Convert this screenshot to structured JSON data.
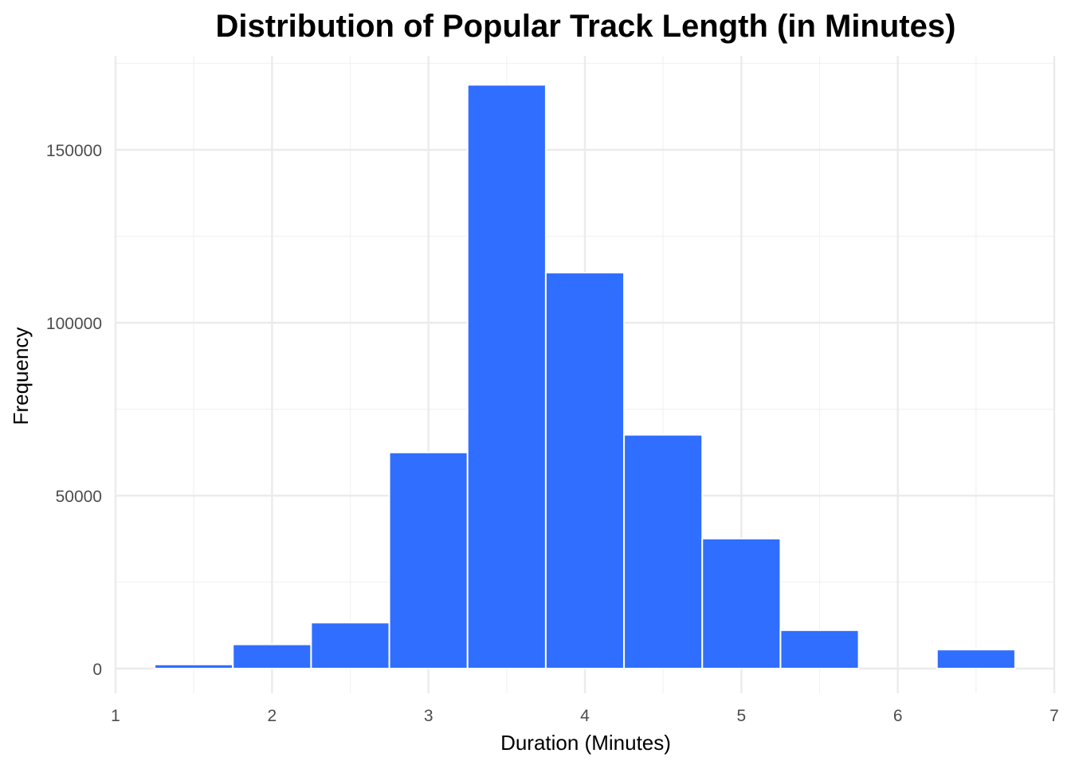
{
  "chart_data": {
    "type": "bar",
    "title": "Distribution of Popular Track Length (in Minutes)",
    "xlabel": "Duration (Minutes)",
    "ylabel": "Frequency",
    "bin_width": 0.5,
    "bins": [
      {
        "start": 1.25,
        "end": 1.75,
        "value": 1200
      },
      {
        "start": 1.75,
        "end": 2.25,
        "value": 7000
      },
      {
        "start": 2.25,
        "end": 2.75,
        "value": 13300
      },
      {
        "start": 2.75,
        "end": 3.25,
        "value": 62500
      },
      {
        "start": 3.25,
        "end": 3.75,
        "value": 168800
      },
      {
        "start": 3.75,
        "end": 4.25,
        "value": 114500
      },
      {
        "start": 4.25,
        "end": 4.75,
        "value": 67600
      },
      {
        "start": 4.75,
        "end": 5.25,
        "value": 37600
      },
      {
        "start": 5.25,
        "end": 5.75,
        "value": 11100
      },
      {
        "start": 5.75,
        "end": 6.25,
        "value": 0
      },
      {
        "start": 6.25,
        "end": 6.75,
        "value": 5500
      }
    ],
    "xlim": [
      1,
      7
    ],
    "ylim": [
      0,
      170000
    ],
    "x_ticks": [
      1,
      2,
      3,
      4,
      5,
      6,
      7
    ],
    "x_tick_labels": [
      "1",
      "2",
      "3",
      "4",
      "5",
      "6",
      "7"
    ],
    "y_ticks": [
      0,
      50000,
      100000,
      150000
    ],
    "y_tick_labels": [
      "0",
      "50000",
      "100000",
      "150000"
    ],
    "bar_color": "#306EFF",
    "bar_edge_color": "#FFFFFF",
    "grid": true,
    "legend": false
  }
}
